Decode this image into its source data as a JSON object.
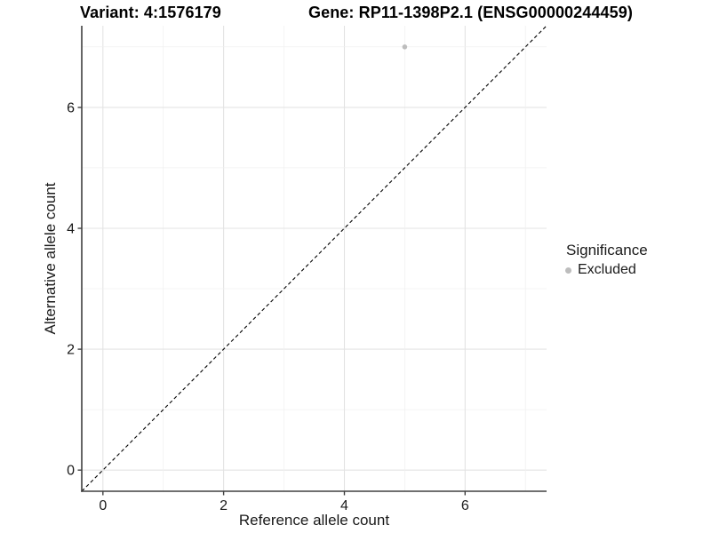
{
  "chart_data": {
    "type": "scatter",
    "titles": {
      "left": "Variant: 4:1576179",
      "right": "Gene: RP11-1398P2.1 (ENSG00000244459)"
    },
    "xlabel": "Reference allele count",
    "ylabel": "Alternative allele count",
    "xlim": [
      -0.35,
      7.35
    ],
    "ylim": [
      -0.35,
      7.35
    ],
    "x_ticks": [
      0,
      2,
      4,
      6
    ],
    "y_ticks": [
      0,
      2,
      4,
      6
    ],
    "grid_lines": [
      0,
      1,
      2,
      3,
      4,
      5,
      6,
      7
    ],
    "legend": {
      "title": "Significance",
      "position": "right"
    },
    "series": [
      {
        "name": "Excluded",
        "color": "#bdbdbd",
        "marker": "circle",
        "points": [
          {
            "x": 5,
            "y": 7
          }
        ]
      }
    ],
    "reference_line": {
      "kind": "identity",
      "equation": "y = x",
      "style": "dashed",
      "color": "#000000"
    }
  },
  "style": {
    "background": "#ffffff",
    "grid_major_color": "#e3e3e3",
    "grid_minor_color": "#f0f0f0",
    "axis_line_color": "#404040",
    "text_color": "#1a1a1a"
  }
}
